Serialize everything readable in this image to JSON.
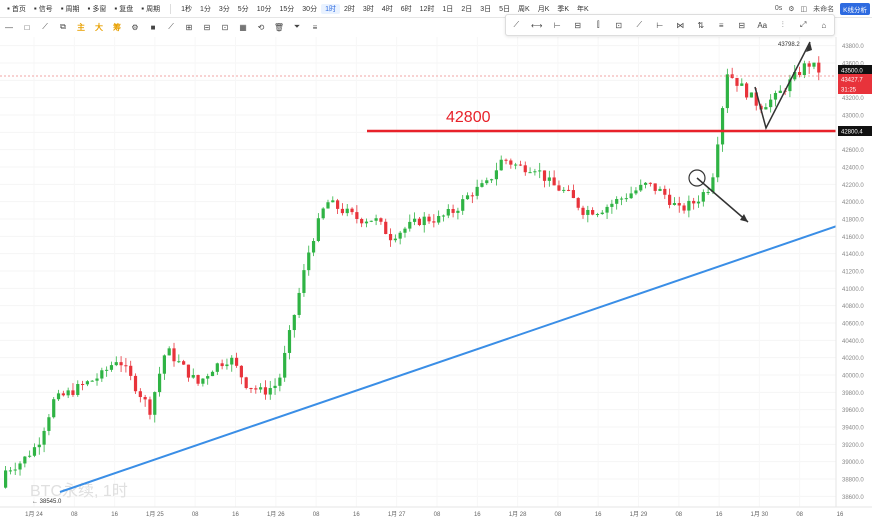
{
  "toolbar": {
    "left_items": [
      {
        "icon": "home-icon",
        "label": "首页"
      },
      {
        "icon": "signal-icon",
        "label": "信号"
      },
      {
        "icon": "calendar-icon",
        "label": "周期"
      },
      {
        "icon": "grid-icon",
        "label": "多窗"
      },
      {
        "icon": "replay-icon",
        "label": "复盘"
      },
      {
        "icon": "period-icon",
        "label": "周期"
      }
    ],
    "intervals": [
      "1秒",
      "1分",
      "3分",
      "5分",
      "10分",
      "15分",
      "30分",
      "1时",
      "2时",
      "3时",
      "4时",
      "6时",
      "12时",
      "1日",
      "2日",
      "3日",
      "5日",
      "周K",
      "月K",
      "季K",
      "年K"
    ],
    "active_interval": "1时",
    "right_items": [
      "0s",
      "未命名"
    ],
    "right_badge": "K线分析"
  },
  "tools_row": {
    "items": [
      "—",
      "□",
      "⟋",
      "⧉",
      "主",
      "大",
      "筹",
      "⚙",
      "■",
      "⟋",
      "⊞",
      "⊟",
      "⊡",
      "▦",
      "⟲",
      "🗑",
      "⏷",
      "≡"
    ]
  },
  "draw_toolbar": {
    "items": [
      "⟋",
      "⟷",
      "⊢",
      "⊟",
      "⫿",
      "⊡",
      "⟋",
      "⊢",
      "⋈",
      "⇅",
      "≡",
      "⊟",
      "Aa",
      "⫶",
      "⤢",
      "⌂"
    ]
  },
  "chart_data": {
    "type": "candlestick",
    "watermark": "BTC永续, 1时",
    "resistance_label": "42800",
    "resistance_value": 42800,
    "resistance_tag": "42800.4",
    "high_label": "43798.2",
    "low_label": "38545.0",
    "current_price_tag": "43500.0",
    "mark_price_tag": "43427.7",
    "countdown_tag": "31:25",
    "y_ticks": [
      "43800.0",
      "43600.0",
      "43400.0",
      "43200.0",
      "43000.0",
      "42800.0",
      "42600.0",
      "42400.0",
      "42200.0",
      "42000.0",
      "41800.0",
      "41600.0",
      "41400.0",
      "41200.0",
      "41000.0",
      "40800.0",
      "40600.0",
      "40400.0",
      "40200.0",
      "40000.0",
      "39800.0",
      "39600.0",
      "39400.0",
      "39200.0",
      "39000.0",
      "38800.0",
      "38600.0"
    ],
    "y_range": [
      38500,
      43900
    ],
    "x_ticks": [
      "1月 24",
      "08",
      "16",
      "1月 25",
      "08",
      "16",
      "1月 26",
      "08",
      "16",
      "1月 27",
      "08",
      "16",
      "1月 28",
      "08",
      "16",
      "1月 29",
      "08",
      "16",
      "1月 30",
      "08",
      "16"
    ],
    "colors": {
      "up": "#2fb344",
      "down": "#e8333b",
      "trend": "#3a8ee6",
      "resistance": "#e8222a"
    }
  }
}
